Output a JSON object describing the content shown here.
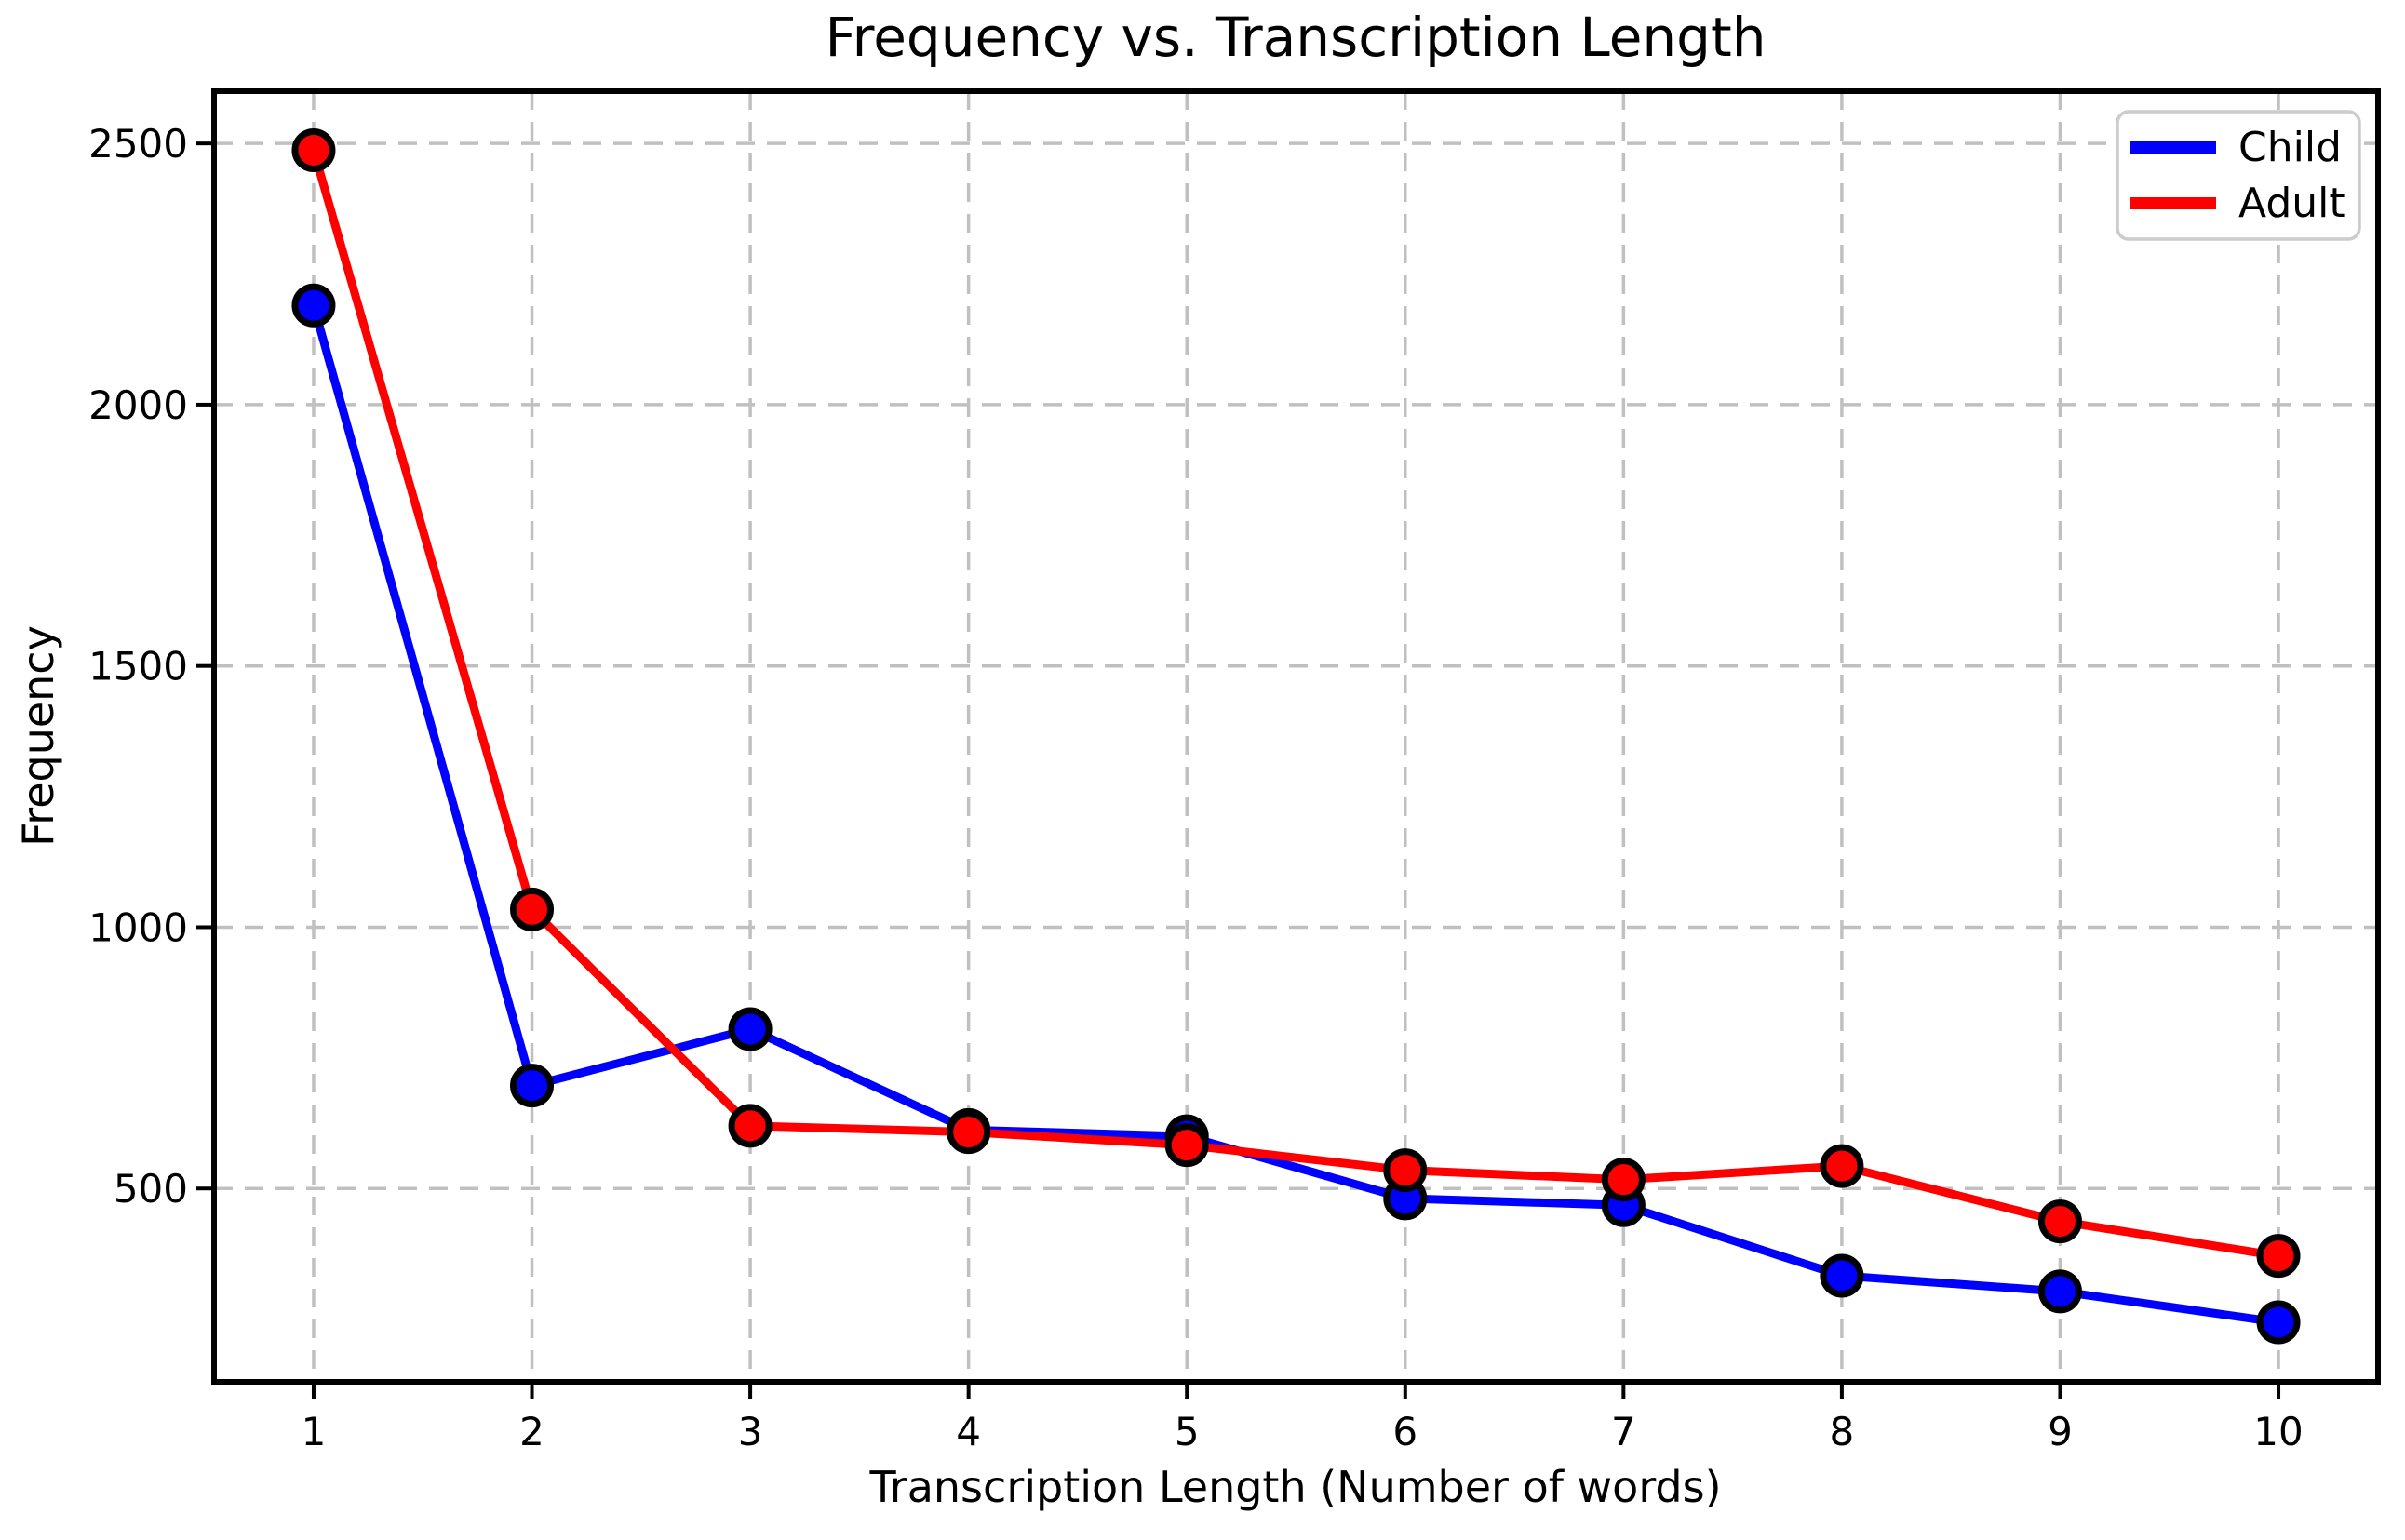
{
  "chart_data": {
    "type": "line",
    "title": "Frequency vs. Transcription Length",
    "xlabel": "Transcription Length (Number of words)",
    "ylabel": "Frequency",
    "x": [
      1,
      2,
      3,
      4,
      5,
      6,
      7,
      8,
      9,
      10
    ],
    "series": [
      {
        "name": "Child",
        "color": "#0000ff",
        "values": [
          2190,
          697,
          805,
          612,
          600,
          481,
          468,
          333,
          303,
          244
        ]
      },
      {
        "name": "Adult",
        "color": "#ff0000",
        "values": [
          2487,
          1034,
          620,
          608,
          583,
          535,
          517,
          543,
          437,
          371
        ]
      }
    ],
    "xticks": [
      1,
      2,
      3,
      4,
      5,
      6,
      7,
      8,
      9,
      10
    ],
    "yticks": [
      500,
      1000,
      1500,
      2000,
      2500
    ],
    "xlim": [
      0.544,
      10.456
    ],
    "ylim": [
      130,
      2600
    ],
    "grid": true,
    "grid_style": "dashed",
    "grid_color": "#c0c0c0",
    "legend_position": "upper right",
    "legend_border_color": "#cccccc",
    "marker": "o",
    "marker_edge_color": "#000000",
    "background_color": "#ffffff"
  }
}
